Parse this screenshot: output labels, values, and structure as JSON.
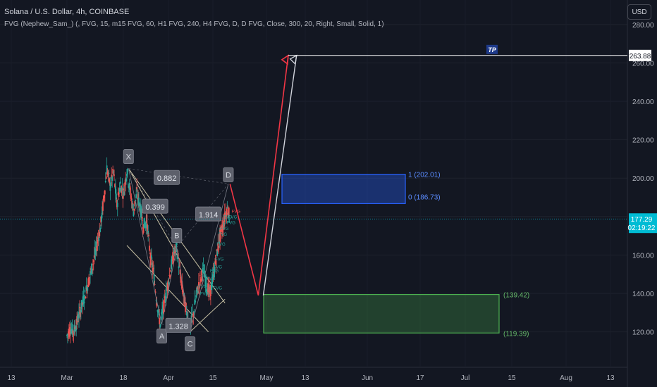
{
  "header": {
    "symbol_line": "Solana / U.S. Dollar, 4h, COINBASE",
    "indicator_line": "FVG (Nephew_Sam_) (, FVG, 15, m15 FVG, 60, H1 FVG, 240, H4 FVG, D, D FVG, Close, 300, 20, Right, Small, Solid, 1)"
  },
  "currency_button": "USD",
  "colors": {
    "background": "#131722",
    "up": "#26a69a",
    "down": "#ef5350",
    "target_line": "#ffffff",
    "fib_zone": "#2962ff",
    "support_zone": "#4caf50",
    "price_label": "#00bcd4"
  },
  "chart_data": {
    "type": "candlestick",
    "title": "Solana / U.S. Dollar, 4h, COINBASE",
    "y_axis": {
      "min": 112,
      "max": 285,
      "ticks": [
        "120.00",
        "140.00",
        "160.00",
        "180.00",
        "200.00",
        "220.00",
        "240.00",
        "260.00",
        "280.00"
      ],
      "side": "right"
    },
    "x_ticks": [
      "13",
      "Mar",
      "18",
      "Apr",
      "15",
      "May",
      "13",
      "Jun",
      "17",
      "Jul",
      "15",
      "Aug",
      "13"
    ],
    "price_path_days": [
      [
        0,
        118
      ],
      [
        2,
        122
      ],
      [
        4,
        120
      ],
      [
        6,
        125
      ],
      [
        8,
        131
      ],
      [
        10,
        137
      ],
      [
        12,
        143
      ],
      [
        14,
        150
      ],
      [
        16,
        157
      ],
      [
        18,
        165
      ],
      [
        20,
        174
      ],
      [
        22,
        188
      ],
      [
        24,
        205
      ],
      [
        26,
        196
      ],
      [
        28,
        203
      ],
      [
        30,
        186
      ],
      [
        32,
        197
      ],
      [
        34,
        192
      ],
      [
        36,
        204
      ],
      [
        38,
        193
      ],
      [
        40,
        183
      ],
      [
        42,
        192
      ],
      [
        44,
        185
      ],
      [
        46,
        175
      ],
      [
        48,
        178
      ],
      [
        50,
        160
      ],
      [
        52,
        151
      ],
      [
        54,
        136
      ],
      [
        56,
        124
      ],
      [
        58,
        133
      ],
      [
        60,
        142
      ],
      [
        62,
        151
      ],
      [
        64,
        160
      ],
      [
        66,
        164
      ],
      [
        68,
        150
      ],
      [
        70,
        139
      ],
      [
        72,
        130
      ],
      [
        74,
        122
      ],
      [
        76,
        130
      ],
      [
        78,
        140
      ],
      [
        80,
        147
      ],
      [
        82,
        152
      ],
      [
        84,
        144
      ],
      [
        86,
        140
      ],
      [
        88,
        149
      ],
      [
        90,
        160
      ],
      [
        92,
        170
      ],
      [
        94,
        176
      ],
      [
        96,
        184
      ],
      [
        97,
        183
      ],
      [
        98,
        178
      ]
    ],
    "last_price": "177.29",
    "countdown": "02:19:22",
    "target_price": "263.88",
    "target_label": "TP",
    "zones": [
      {
        "name": "fib-zone",
        "top_label": "1 (202.01)",
        "bottom_label": "0 (186.73)",
        "top": 202.01,
        "bottom": 186.73
      },
      {
        "name": "support-zone",
        "top_label": "(139.42)",
        "bottom_label": "(119.39)",
        "top": 139.42,
        "bottom": 119.39
      }
    ],
    "harmonic_points": [
      {
        "label": "X",
        "day": 37,
        "price": 205
      },
      {
        "label": "A",
        "day": 57,
        "price": 124
      },
      {
        "label": "B",
        "day": 66,
        "price": 164
      },
      {
        "label": "C",
        "day": 74,
        "price": 120
      },
      {
        "label": "D",
        "day": 97,
        "price": 197
      }
    ],
    "ratios": [
      {
        "value": "0.882",
        "day": 60,
        "price": 200
      },
      {
        "value": "0.399",
        "day": 53,
        "price": 185
      },
      {
        "value": "1.914",
        "day": 85,
        "price": 181
      },
      {
        "value": "1.328",
        "day": 67,
        "price": 123
      }
    ],
    "fvg_tag": "FVG",
    "projection": {
      "red": [
        [
          98,
          197
        ],
        [
          115,
          139
        ],
        [
          133,
          263.88
        ]
      ],
      "white": [
        [
          118,
          139
        ],
        [
          138,
          263.88
        ]
      ]
    }
  }
}
